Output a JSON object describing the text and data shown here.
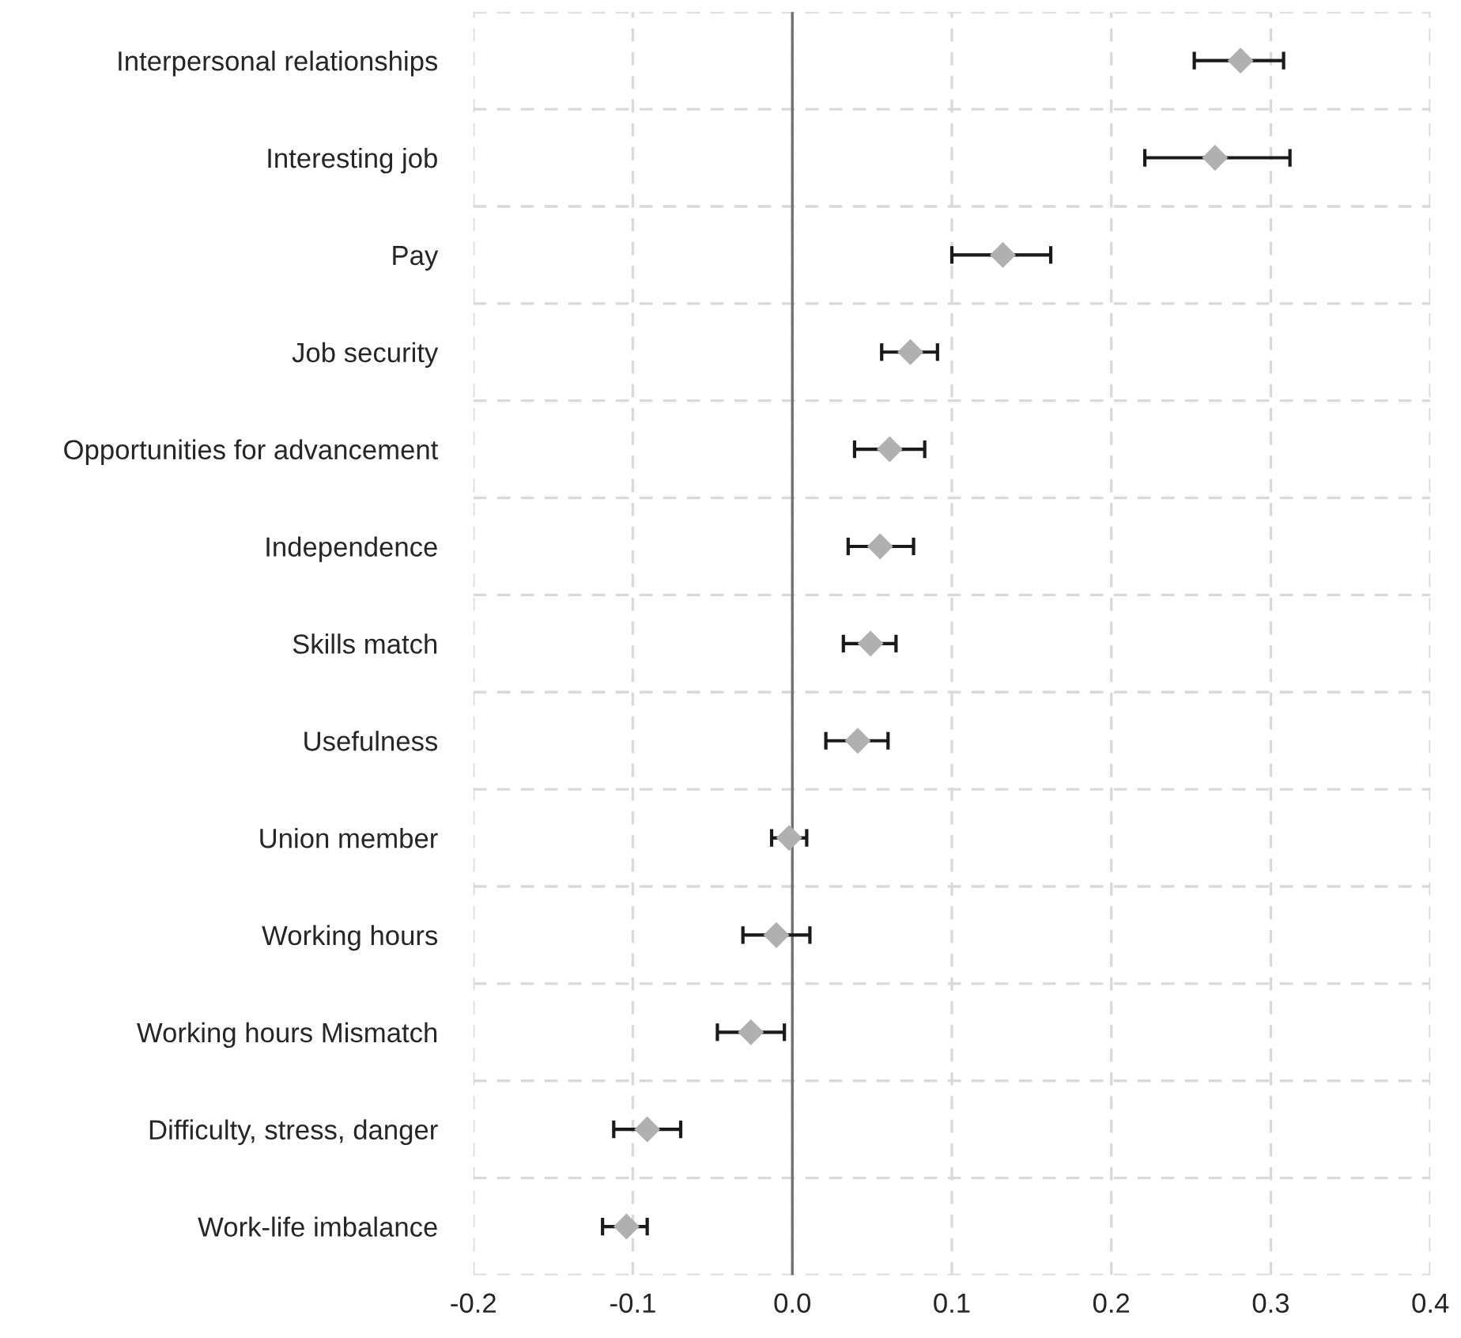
{
  "chart_data": {
    "type": "scatter",
    "orientation": "horizontal",
    "categories": [
      "Interpersonal relationships",
      "Interesting job",
      "Pay",
      "Job security",
      "Opportunities for advancement",
      "Independence",
      "Skills match",
      "Usefulness",
      "Union member",
      "Working hours",
      "Working hours Mismatch",
      "Difficulty, stress, danger",
      "Work-life imbalance"
    ],
    "values": [
      0.281,
      0.265,
      0.132,
      0.074,
      0.061,
      0.055,
      0.049,
      0.041,
      -0.002,
      -0.01,
      -0.026,
      -0.091,
      -0.104
    ],
    "errors": [
      [
        0.252,
        0.308
      ],
      [
        0.221,
        0.312
      ],
      [
        0.1,
        0.162
      ],
      [
        0.056,
        0.091
      ],
      [
        0.039,
        0.083
      ],
      [
        0.035,
        0.076
      ],
      [
        0.032,
        0.065
      ],
      [
        0.021,
        0.06
      ],
      [
        -0.013,
        0.009
      ],
      [
        -0.031,
        0.011
      ],
      [
        -0.047,
        -0.005
      ],
      [
        -0.112,
        -0.07
      ],
      [
        -0.119,
        -0.091
      ]
    ],
    "color": "#b0b0b0",
    "marker": "diamond",
    "grid": true,
    "xlim": [
      -0.2,
      0.4
    ],
    "xticks": [
      {
        "value": -0.2,
        "label": "-0.2"
      },
      {
        "value": -0.1,
        "label": "-0.1"
      },
      {
        "value": 0.0,
        "label": "0.0"
      },
      {
        "value": 0.1,
        "label": "0.1"
      },
      {
        "value": 0.2,
        "label": "0.2"
      },
      {
        "value": 0.3,
        "label": "0.3"
      },
      {
        "value": 0.4,
        "label": "0.4"
      }
    ],
    "ref_lines": [
      {
        "axis": "x",
        "value": 0,
        "color": "#707070",
        "line_style": "solid"
      }
    ]
  }
}
